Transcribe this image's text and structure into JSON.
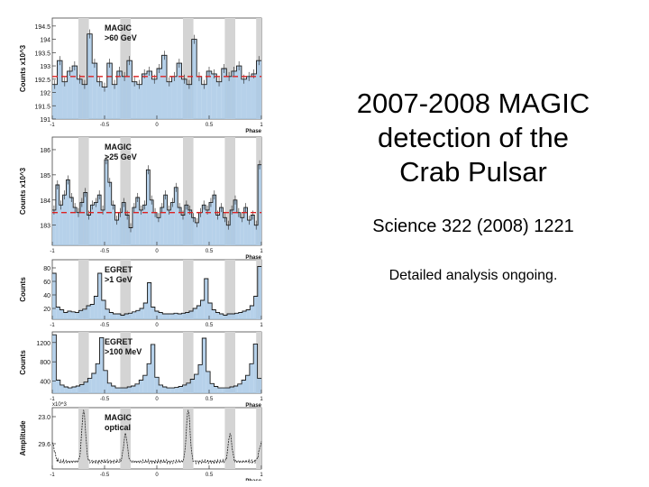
{
  "title_lines": [
    "2007-2008 MAGIC",
    "detection of the",
    "Crab Pulsar"
  ],
  "reference": "Science 322 (2008) 1221",
  "note": "Detailed analysis ongoing.",
  "chart_data": [
    {
      "type": "bar",
      "title": "MAGIC >60 GeV",
      "ylabel": "Counts",
      "yscale_label": "x10^3",
      "xlabel": "Phase",
      "x_ticks": [
        "-1",
        "-0.5",
        "0",
        "0.5",
        "1"
      ],
      "y_ticks": [
        "191",
        "191.5",
        "192",
        "192.5",
        "193",
        "193.5",
        "194",
        "194.5"
      ],
      "ylim": [
        191,
        194.8
      ],
      "baseline": 192.6,
      "values": [
        192.3,
        193.2,
        192.4,
        192.8,
        193.0,
        192.5,
        192.3,
        194.2,
        193.1,
        192.4,
        192.2,
        193.1,
        192.3,
        192.8,
        192.6,
        193.2,
        192.4,
        192.3,
        192.7,
        192.8,
        192.5,
        192.9,
        193.4,
        192.4,
        192.6,
        193.1,
        192.5,
        192.3,
        194.0,
        192.6,
        192.3,
        192.8,
        192.7,
        192.4,
        192.9,
        192.6,
        192.8,
        193.0,
        192.5,
        192.6,
        192.7,
        193.2
      ]
    },
    {
      "type": "bar",
      "title": "MAGIC >25 GeV",
      "ylabel": "Counts",
      "yscale_label": "x10^3",
      "xlabel": "Phase",
      "x_ticks": [
        "-1",
        "-0.5",
        "0",
        "0.5",
        "1"
      ],
      "y_ticks": [
        "183",
        "184",
        "185",
        "186"
      ],
      "ylim": [
        182.2,
        186.5
      ],
      "baseline": 183.5,
      "values": [
        183.6,
        184.6,
        183.8,
        184.2,
        184.8,
        184.1,
        183.7,
        183.5,
        183.9,
        184.3,
        183.4,
        183.8,
        183.9,
        184.2,
        183.6,
        185.6,
        184.7,
        183.8,
        183.2,
        183.5,
        183.9,
        183.4,
        182.9,
        183.7,
        184.1,
        183.6,
        183.8,
        185.2,
        184.0,
        183.5,
        183.3,
        183.7,
        184.2,
        183.6,
        183.9,
        184.5,
        183.7,
        183.4,
        183.8,
        183.6,
        183.3,
        183.1,
        183.5,
        183.8,
        183.6,
        183.9,
        184.2,
        183.4,
        183.7,
        183.3,
        183.0,
        183.6,
        184.0,
        183.5,
        183.3,
        183.7,
        183.2,
        183.4,
        183.0,
        185.4
      ]
    },
    {
      "type": "bar",
      "title": "EGRET >1 GeV",
      "ylabel": "Counts",
      "xlabel": "",
      "x_ticks": [
        "-1",
        "-0.5",
        "0",
        "0.5",
        "1"
      ],
      "y_ticks": [
        "20",
        "40",
        "60",
        "80"
      ],
      "ylim": [
        4,
        92
      ],
      "values": [
        72,
        22,
        18,
        14,
        16,
        15,
        14,
        17,
        19,
        24,
        26,
        38,
        72,
        32,
        19,
        14,
        12,
        12,
        10,
        12,
        13,
        15,
        17,
        20,
        28,
        58,
        22,
        16,
        14,
        12,
        12,
        12,
        13,
        12,
        13,
        14,
        16,
        20,
        24,
        32,
        64,
        28,
        18,
        14,
        12,
        10,
        12,
        12,
        13,
        14,
        16,
        18,
        24,
        38,
        82
      ]
    },
    {
      "type": "bar",
      "title": "EGRET >100 MeV",
      "ylabel": "Counts",
      "xlabel": "Phase",
      "x_ticks": [
        "-1",
        "-0.5",
        "0",
        "0.5",
        "1"
      ],
      "y_ticks": [
        "400",
        "800",
        "1200"
      ],
      "ylim": [
        150,
        1420
      ],
      "values": [
        1360,
        420,
        320,
        280,
        260,
        280,
        300,
        330,
        380,
        460,
        560,
        760,
        1300,
        620,
        360,
        300,
        260,
        260,
        260,
        280,
        300,
        340,
        420,
        520,
        760,
        1160,
        480,
        320,
        280,
        260,
        260,
        270,
        290,
        320,
        360,
        440,
        540,
        740,
        1290,
        600,
        350,
        290,
        260,
        260,
        260,
        280,
        300,
        340,
        420,
        520,
        760,
        1170,
        460
      ]
    },
    {
      "type": "line",
      "title": "MAGIC optical",
      "ylabel": "Amplitude",
      "yscale_label": "x10^3",
      "xlabel": "Phase",
      "x_ticks": [
        "-1",
        "-0.5",
        "0",
        "0.5",
        "1"
      ],
      "y_ticks": [
        "23.0",
        "29.6"
      ],
      "pulse_phases": [
        -0.7,
        -0.3,
        0.3,
        0.7
      ],
      "pulse_heights": [
        0.85,
        0.45,
        0.85,
        0.45
      ],
      "floor": 0.12,
      "peak_max": 0.95
    }
  ]
}
